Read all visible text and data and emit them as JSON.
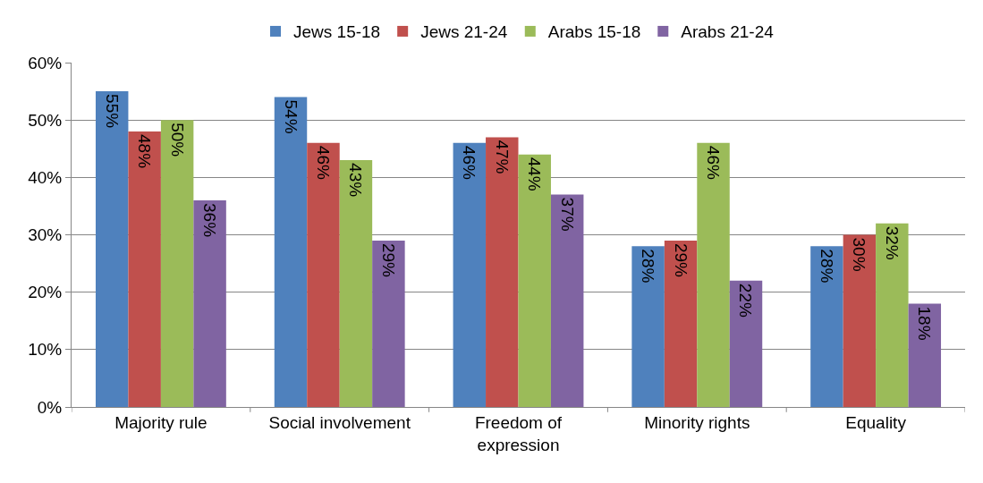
{
  "chart_data": {
    "type": "bar",
    "categories": [
      "Majority rule",
      "Social involvement",
      "Freedom of expression",
      "Minority rights",
      "Equality"
    ],
    "series": [
      {
        "name": "Jews 15-18",
        "color": "#4f81bd",
        "values": [
          55,
          54,
          46,
          28,
          28
        ],
        "value_labels": [
          "55%",
          "54%",
          "46%",
          "28%",
          "28%"
        ]
      },
      {
        "name": "Jews 21-24",
        "color": "#c0504d",
        "values": [
          48,
          46,
          47,
          29,
          30
        ],
        "value_labels": [
          "48%",
          "46%",
          "47%",
          "29%",
          "30%"
        ]
      },
      {
        "name": "Arabs 15-18",
        "color": "#9bbb59",
        "values": [
          50,
          43,
          44,
          46,
          32
        ],
        "value_labels": [
          "50%",
          "43%",
          "44%",
          "46%",
          "32%"
        ]
      },
      {
        "name": "Arabs 21-24",
        "color": "#8064a2",
        "values": [
          36,
          29,
          37,
          22,
          18
        ],
        "value_labels": [
          "36%",
          "29%",
          "37%",
          "22%",
          "18%"
        ]
      }
    ],
    "ylim": [
      0,
      60
    ],
    "yticks": [
      {
        "value": 0,
        "label": "0%"
      },
      {
        "value": 10,
        "label": "10%"
      },
      {
        "value": 20,
        "label": "20%"
      },
      {
        "value": 30,
        "label": "30%"
      },
      {
        "value": 40,
        "label": "40%"
      },
      {
        "value": 50,
        "label": "50%"
      },
      {
        "value": 60,
        "label": "60%"
      }
    ],
    "grid": "y",
    "legend": "top"
  }
}
